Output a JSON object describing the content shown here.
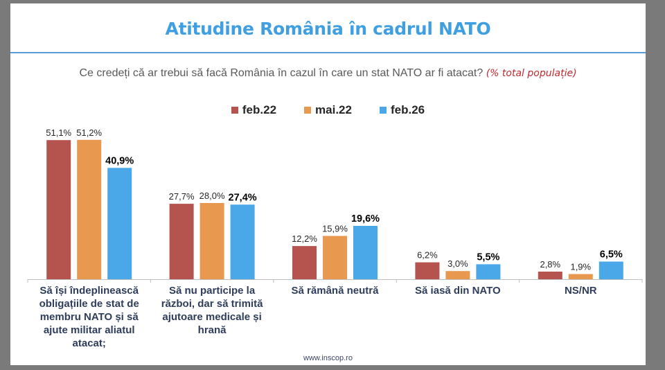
{
  "slide": {
    "title": "Atitudine România în cadrul NATO",
    "question": "Ce credeți că ar trebui să facă România în cazul în care un stat NATO ar fi atacat?",
    "question_note": "(% total populație)",
    "footer": "www.inscop.ro"
  },
  "chart_data": {
    "type": "bar",
    "title": "Atitudine România în cadrul NATO",
    "subtitle": "Ce credeți că ar trebui să facă România în cazul în care un stat NATO ar fi atacat? (% total populație)",
    "xlabel": "",
    "ylabel": "",
    "ylim": [
      0,
      55
    ],
    "grid": false,
    "legend_position": "top-center",
    "categories": [
      "Să își îndeplinească obligațiile de stat de membru NATO și să ajute militar aliatul atacat;",
      "Să nu participe la război, dar să trimită ajutoare medicale și hrană",
      "Să rămână neutră",
      "Să iasă din NATO",
      "NS/NR"
    ],
    "series": [
      {
        "name": "feb.22",
        "color": "#b5534e",
        "values": [
          51.1,
          27.7,
          12.2,
          6.2,
          2.8
        ],
        "labels": [
          "51,1%",
          "27,7%",
          "12,2%",
          "6,2%",
          "2,8%"
        ],
        "bold": false
      },
      {
        "name": "mai.22",
        "color": "#e8984f",
        "values": [
          51.2,
          28.0,
          15.9,
          3.0,
          1.9
        ],
        "labels": [
          "51,2%",
          "28,0%",
          "15,9%",
          "3,0%",
          "1,9%"
        ],
        "bold": false
      },
      {
        "name": "feb.26",
        "color": "#4aa8e8",
        "values": [
          40.9,
          27.4,
          19.6,
          5.5,
          6.5
        ],
        "labels": [
          "40,9%",
          "27,4%",
          "19,6%",
          "5,5%",
          "6,5%"
        ],
        "bold": true
      }
    ]
  }
}
